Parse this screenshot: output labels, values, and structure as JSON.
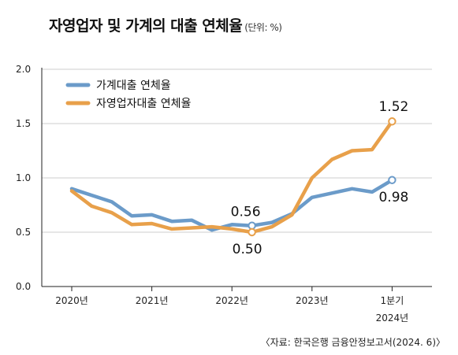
{
  "title": "자영업자 및 가계의 대출 연체율",
  "unit": "(단위: %)",
  "source": "〈자료: 한국은행 금융안정보고서(2024. 6)〉",
  "chart_data": {
    "type": "line",
    "title": "자영업자 및 가계의 대출 연체율",
    "unit": "(단위: %)",
    "ylim": [
      0,
      2.0
    ],
    "yticks": [
      "0.0",
      "0.5",
      "1.0",
      "1.5",
      "2.0"
    ],
    "xtick_labels": [
      "2020년",
      "2021년",
      "2022년",
      "2023년",
      "1분기",
      "2024년"
    ],
    "legend": "top-left",
    "series": [
      {
        "name": "가계대출 연체율",
        "color": "#6b9bc9",
        "values": [
          0.9,
          0.84,
          0.78,
          0.65,
          0.66,
          0.6,
          0.61,
          0.52,
          0.57,
          0.56,
          0.59,
          0.67,
          0.82,
          0.86,
          0.9,
          0.87,
          0.98
        ]
      },
      {
        "name": "자영업자대출 연체율",
        "color": "#e8a04a",
        "values": [
          0.88,
          0.74,
          0.68,
          0.57,
          0.58,
          0.53,
          0.54,
          0.55,
          0.53,
          0.5,
          0.55,
          0.66,
          1.0,
          1.17,
          1.25,
          1.26,
          1.52
        ]
      }
    ],
    "annotations": [
      {
        "series": 0,
        "index": 9,
        "label": "0.56"
      },
      {
        "series": 1,
        "index": 9,
        "label": "0.50"
      },
      {
        "series": 1,
        "index": 16,
        "label": "1.52"
      },
      {
        "series": 0,
        "index": 16,
        "label": "0.98"
      }
    ]
  }
}
